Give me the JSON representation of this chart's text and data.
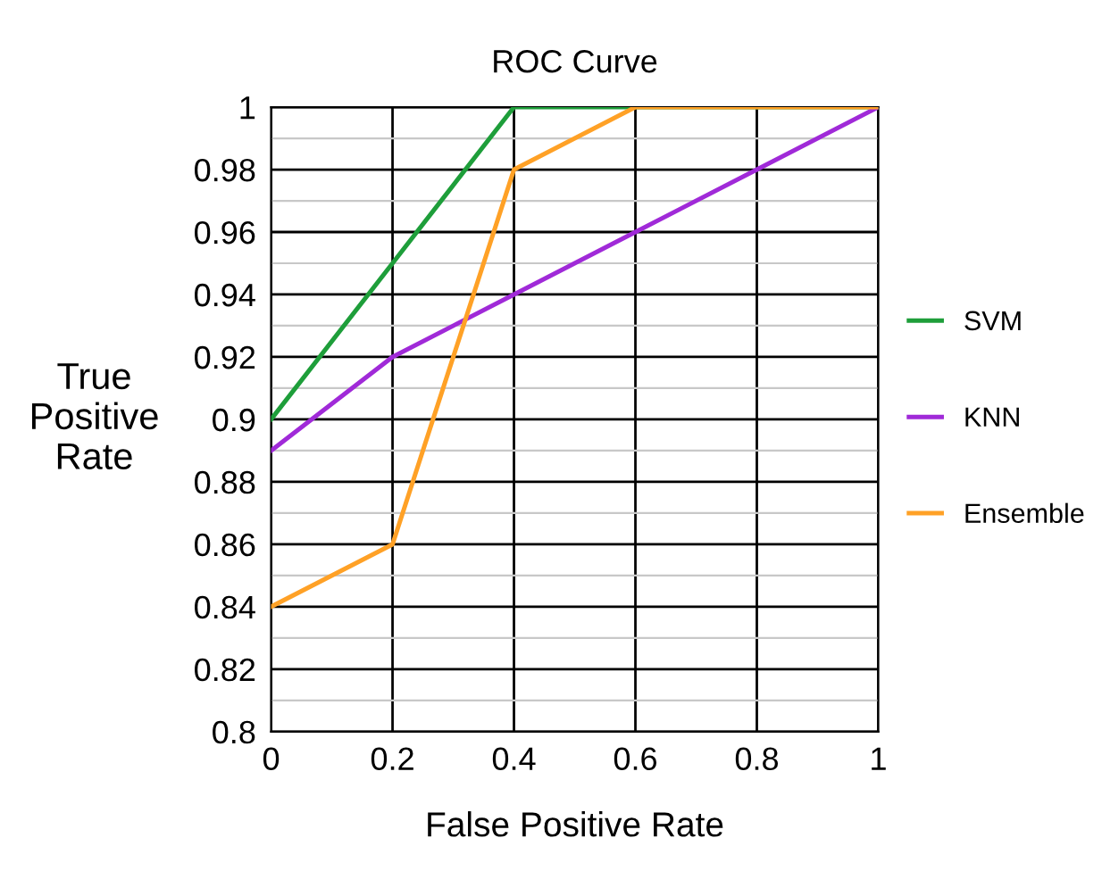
{
  "chart_data": {
    "type": "line",
    "title": "ROC Curve",
    "xlabel": "False Positive Rate",
    "ylabel": "True\nPositive\nRate",
    "x": [
      0,
      0.2,
      0.4,
      0.6,
      0.8,
      1
    ],
    "series": [
      {
        "name": "SVM",
        "color": "#1e9e3a",
        "values": [
          0.9,
          0.95,
          1,
          1,
          1,
          1
        ]
      },
      {
        "name": "KNN",
        "color": "#a02ad8",
        "values": [
          0.89,
          0.92,
          0.94,
          0.96,
          0.98,
          1
        ]
      },
      {
        "name": "Ensemble",
        "color": "#ffa126",
        "values": [
          0.84,
          0.86,
          0.98,
          1,
          1,
          1
        ]
      }
    ],
    "xlim": [
      0,
      1
    ],
    "ylim": [
      0.8,
      1
    ],
    "xticks": [
      0,
      0.2,
      0.4,
      0.6,
      0.8,
      1
    ],
    "yticks": [
      0.8,
      {
        "value": 0.81,
        "label": null
      },
      0.82,
      {
        "value": 0.83,
        "label": null
      },
      0.84,
      {
        "value": 0.85,
        "label": null
      },
      0.86,
      {
        "value": 0.87,
        "label": null
      },
      0.88,
      {
        "value": 0.89,
        "label": null
      },
      0.9,
      {
        "value": 0.91,
        "label": null
      },
      0.92,
      {
        "value": 0.93,
        "label": null
      },
      0.94,
      {
        "value": 0.95,
        "label": null
      },
      0.96,
      {
        "value": 0.97,
        "label": null
      },
      0.98,
      {
        "value": 0.99,
        "label": null
      },
      1
    ],
    "grid": true,
    "legend": "right",
    "marker": "none",
    "line_style": "solid"
  }
}
